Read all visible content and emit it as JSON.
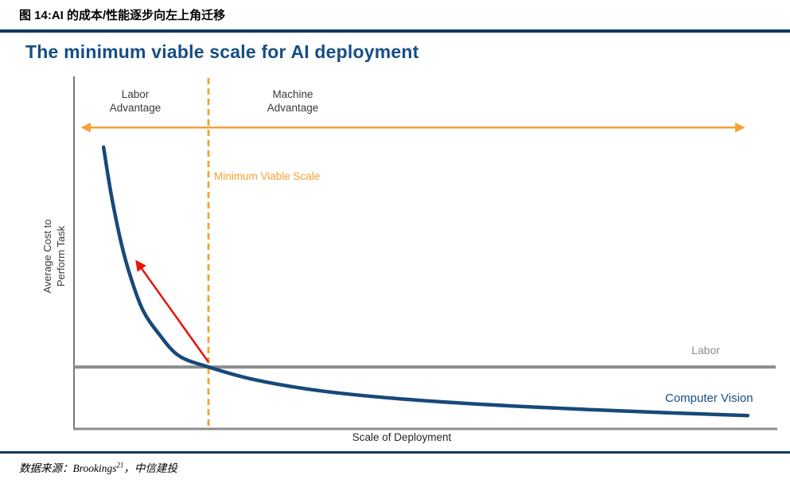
{
  "header": {
    "figure_caption": "图 14:AI 的成本/性能逐步向左上角迁移"
  },
  "chart": {
    "labels": {
      "labor_advantage": "Labor\nAdvantage",
      "machine_advantage": "Machine\nAdvantage",
      "y_axis_display": "Average Cost to\nPerform Task"
    }
  },
  "chart_data": {
    "type": "line",
    "title": "The minimum viable scale for AI deployment",
    "xlabel": "Scale of Deployment",
    "ylabel": "Average Cost to Perform Task",
    "x_axis_numeric": false,
    "y_axis_numeric": false,
    "grid": false,
    "legend_position": "inline-right",
    "series": [
      {
        "name": "Labor",
        "type": "horizontal-line",
        "color": "#8C8C8C",
        "y_normalized": 0.176
      },
      {
        "name": "Computer Vision",
        "type": "decay-curve",
        "color": "#17497A",
        "x_normalized": [
          0.042,
          0.053,
          0.067,
          0.081,
          0.098,
          0.121,
          0.149,
          0.191,
          0.256,
          0.347,
          0.46,
          0.595,
          0.742,
          0.855,
          0.957
        ],
        "y_normalized": [
          0.801,
          0.665,
          0.529,
          0.428,
          0.337,
          0.269,
          0.208,
          0.176,
          0.14,
          0.109,
          0.086,
          0.068,
          0.054,
          0.045,
          0.038
        ]
      }
    ],
    "annotations": [
      {
        "id": "minimum_viable_scale",
        "type": "vertical-dashed-line",
        "label": "Minimum Viable Scale",
        "x_normalized": 0.191,
        "color": "#F5A133"
      },
      {
        "id": "advantage_span",
        "type": "double-headed-arrow",
        "y_normalized": 0.857,
        "x_from_normalized": 0.014,
        "x_to_normalized": 0.949,
        "color": "#F5A133",
        "left_label": "Labor Advantage",
        "right_label": "Machine Advantage"
      },
      {
        "id": "shift_arrow",
        "type": "arrow",
        "color": "#E8120C",
        "from_normalized": [
          0.191,
          0.19
        ],
        "to_normalized": [
          0.09,
          0.473
        ],
        "meaning": "cost/performance shifts toward upper left"
      }
    ]
  },
  "footer": {
    "source_prefix": "数据来源：Brookings",
    "source_superscript": "21",
    "source_suffix": "，中信建投"
  },
  "theme": {
    "title_blue": "#164E84",
    "rule_navy": "#0E3A5F",
    "curve_navy": "#17497A",
    "orange": "#F5A133",
    "line_gray": "#8C8C8C",
    "arrow_red": "#E8120C",
    "label_gray": "#3A3A3A",
    "labor_label_gray": "#8E8E8E"
  }
}
